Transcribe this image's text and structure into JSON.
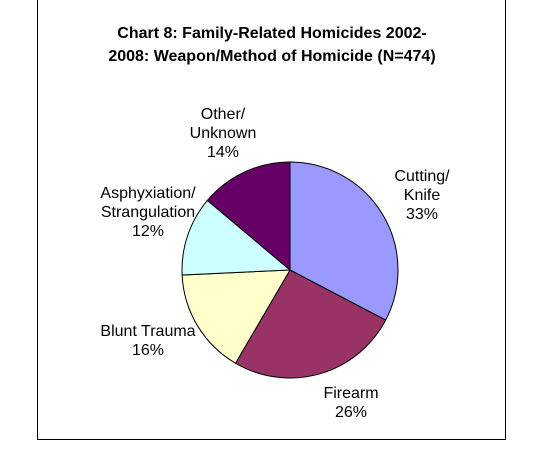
{
  "chart_data": {
    "type": "pie",
    "title_lines": [
      "Chart 8: Family-Related Homicides 2002-",
      "2008: Weapon/Method of Homicide (N=474)"
    ],
    "slices": [
      {
        "label_lines": [
          "Cutting/",
          "Knife"
        ],
        "value": 33,
        "value_label": "33%",
        "color": "#9999ff"
      },
      {
        "label_lines": [
          "Firearm"
        ],
        "value": 26,
        "value_label": "26%",
        "color": "#993366"
      },
      {
        "label_lines": [
          "Blunt Trauma"
        ],
        "value": 16,
        "value_label": "16%",
        "color": "#ffffcc"
      },
      {
        "label_lines": [
          "Asphyxiation/",
          "Strangulation"
        ],
        "value": 12,
        "value_label": "12%",
        "color": "#ccffff"
      },
      {
        "label_lines": [
          "Other/",
          "Unknown"
        ],
        "value": 14,
        "value_label": "14%",
        "color": "#660066"
      }
    ],
    "start_angle": "12 o'clock",
    "direction": "clockwise",
    "legend": "none"
  }
}
